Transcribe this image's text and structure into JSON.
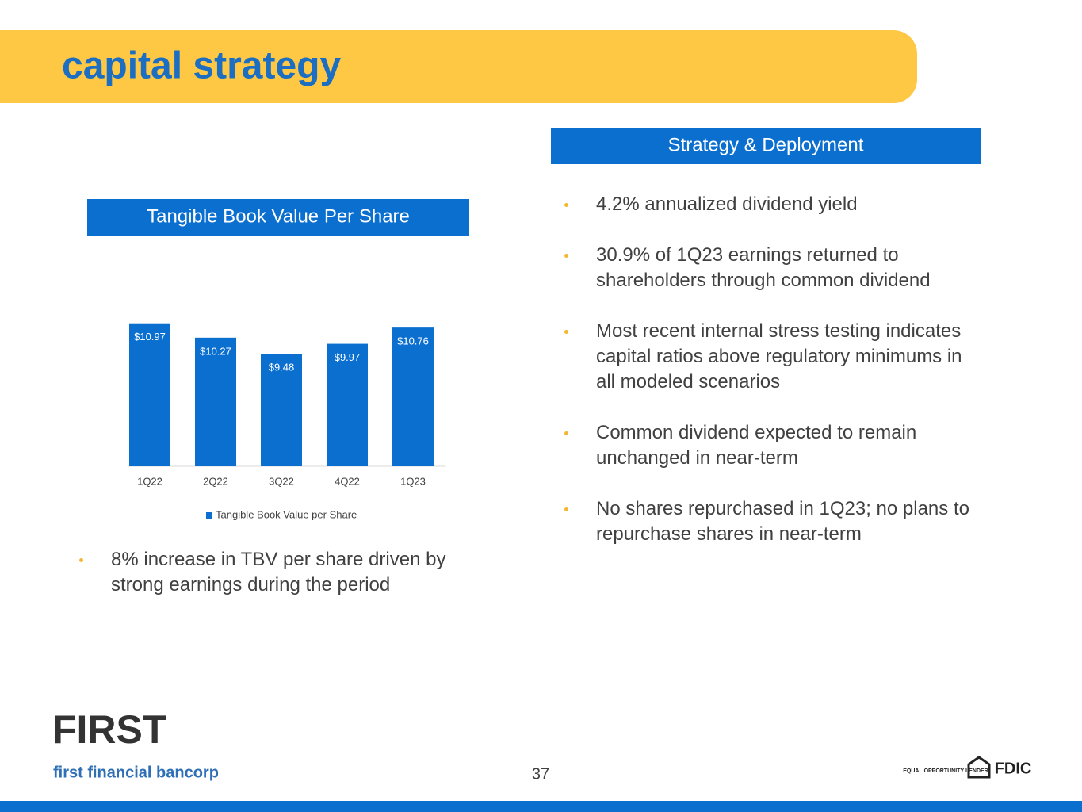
{
  "header": {
    "title": "capital strategy"
  },
  "chart_data": {
    "type": "bar",
    "title": "Tangible Book Value Per Share",
    "categories": [
      "1Q22",
      "2Q22",
      "3Q22",
      "4Q22",
      "1Q23"
    ],
    "series": [
      {
        "name": "Tangible Book Value per Share",
        "color": "#0b6fd0",
        "values": [
          10.97,
          10.27,
          9.48,
          9.97,
          10.76
        ],
        "value_labels": [
          "$10.97",
          "$10.27",
          "$9.48",
          "$9.97",
          "$10.76"
        ]
      }
    ],
    "ylim": [
      4,
      11.5
    ],
    "legend": "bottom"
  },
  "left_bullets": [
    "8% increase in TBV per share driven by strong earnings during the period"
  ],
  "strategy": {
    "title": "Strategy & Deployment",
    "bullets": [
      "4.2% annualized dividend yield",
      "30.9% of 1Q23 earnings returned to shareholders through common dividend",
      "Most recent internal stress testing indicates capital ratios above regulatory minimums in all modeled scenarios",
      "Common dividend expected to remain unchanged in near-term",
      "No shares repurchased in 1Q23; no plans to repurchase shares in near-term"
    ]
  },
  "footer": {
    "logo": "FIRST",
    "company": "first financial bancorp",
    "page": 37,
    "badges": [
      "EQUAL OPPORTUNITY LENDER",
      "FDIC"
    ]
  }
}
